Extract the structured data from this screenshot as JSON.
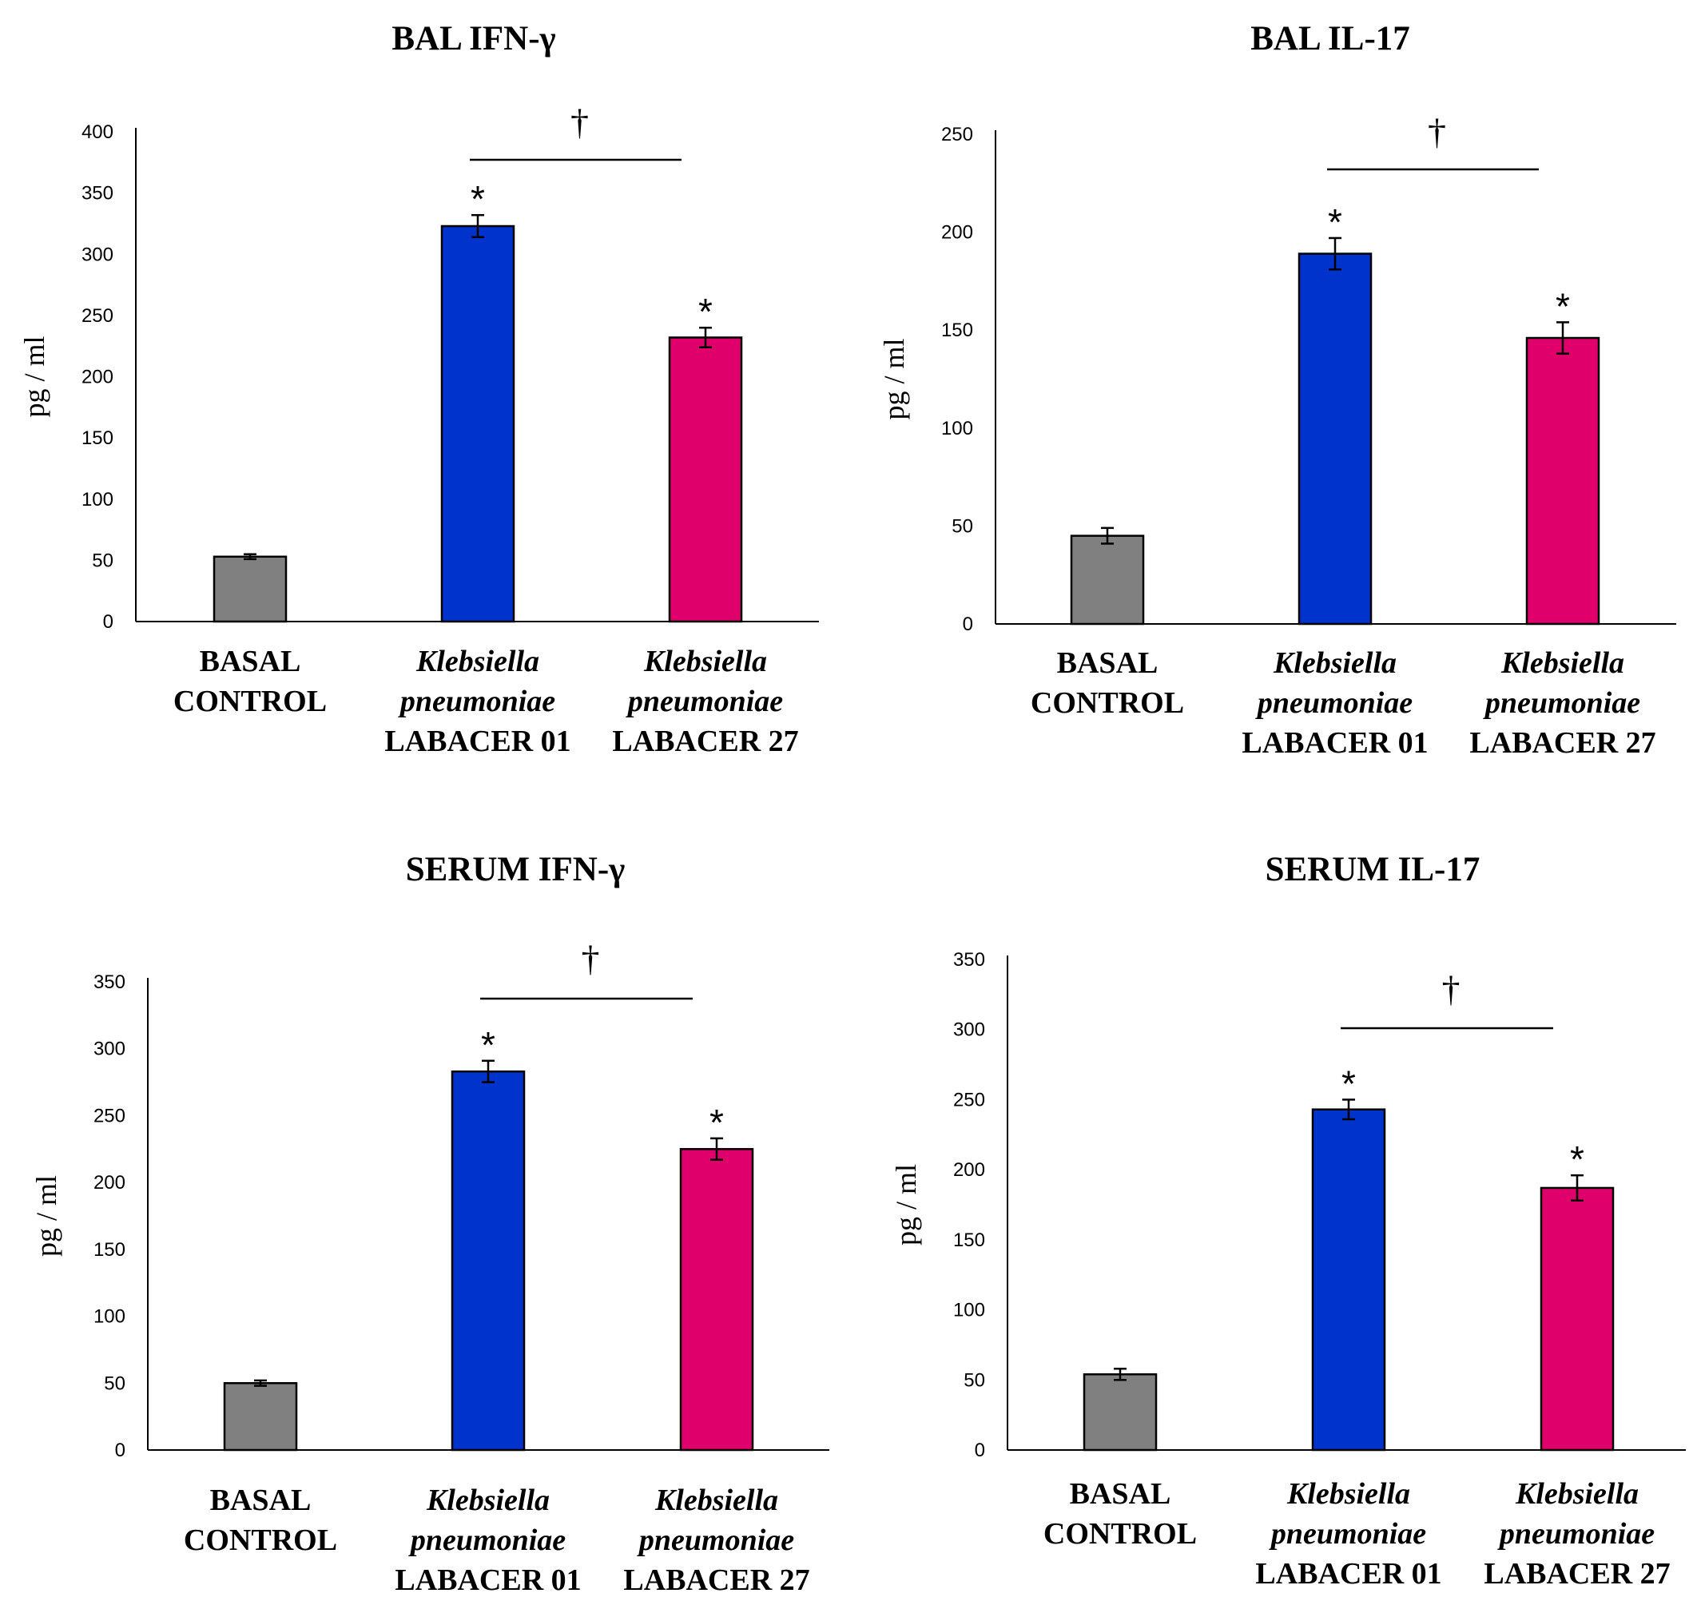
{
  "chart_data": [
    {
      "type": "bar",
      "title": "BAL IFN-γ",
      "ylabel": "pg / ml",
      "ylim": [
        0,
        400
      ],
      "yticks": [
        0,
        50,
        100,
        150,
        200,
        250,
        300,
        350,
        400
      ],
      "categories": [
        [
          "BASAL",
          "CONTROL"
        ],
        [
          "Klebsiella",
          "pneumoniae",
          "LABACER 01"
        ],
        [
          "Klebsiella",
          "pneumoniae",
          "LABACER 27"
        ]
      ],
      "values": [
        53,
        323,
        232
      ],
      "errors": [
        2,
        9,
        8
      ],
      "colors": [
        "#808080",
        "#0033cc",
        "#e0006c"
      ],
      "markers": [
        "",
        "*",
        "*"
      ],
      "bracket": {
        "from": 1,
        "to": 2,
        "symbol": "†"
      }
    },
    {
      "type": "bar",
      "title": "BAL IL-17",
      "ylabel": "pg / ml",
      "ylim": [
        0,
        250
      ],
      "yticks": [
        0,
        50,
        100,
        150,
        200,
        250
      ],
      "categories": [
        [
          "BASAL",
          "CONTROL"
        ],
        [
          "Klebsiella",
          "pneumoniae",
          "LABACER 01"
        ],
        [
          "Klebsiella",
          "pneumoniae",
          "LABACER 27"
        ]
      ],
      "values": [
        45,
        189,
        146
      ],
      "errors": [
        4,
        8,
        8
      ],
      "colors": [
        "#808080",
        "#0033cc",
        "#e0006c"
      ],
      "markers": [
        "",
        "*",
        "*"
      ],
      "bracket": {
        "from": 1,
        "to": 2,
        "symbol": "†"
      }
    },
    {
      "type": "bar",
      "title": "SERUM IFN-γ",
      "ylabel": "pg / ml",
      "ylim": [
        0,
        350
      ],
      "yticks": [
        0,
        50,
        100,
        150,
        200,
        250,
        300,
        350
      ],
      "categories": [
        [
          "BASAL",
          "CONTROL"
        ],
        [
          "Klebsiella",
          "pneumoniae",
          "LABACER 01"
        ],
        [
          "Klebsiella",
          "pneumoniae",
          "LABACER 27"
        ]
      ],
      "values": [
        50,
        283,
        225
      ],
      "errors": [
        2,
        8,
        8
      ],
      "colors": [
        "#808080",
        "#0033cc",
        "#e0006c"
      ],
      "markers": [
        "",
        "*",
        "*"
      ],
      "bracket": {
        "from": 1,
        "to": 2,
        "symbol": "†"
      }
    },
    {
      "type": "bar",
      "title": "SERUM IL-17",
      "ylabel": "pg / ml",
      "ylim": [
        0,
        350
      ],
      "yticks": [
        0,
        50,
        100,
        150,
        200,
        250,
        300,
        350
      ],
      "categories": [
        [
          "BASAL",
          "CONTROL"
        ],
        [
          "Klebsiella",
          "pneumoniae",
          "LABACER 01"
        ],
        [
          "Klebsiella",
          "pneumoniae",
          "LABACER 27"
        ]
      ],
      "values": [
        54,
        243,
        187
      ],
      "errors": [
        4,
        7,
        9
      ],
      "colors": [
        "#808080",
        "#0033cc",
        "#e0006c"
      ],
      "markers": [
        "",
        "*",
        "*"
      ],
      "bracket": {
        "from": 1,
        "to": 2,
        "symbol": "†"
      }
    }
  ]
}
